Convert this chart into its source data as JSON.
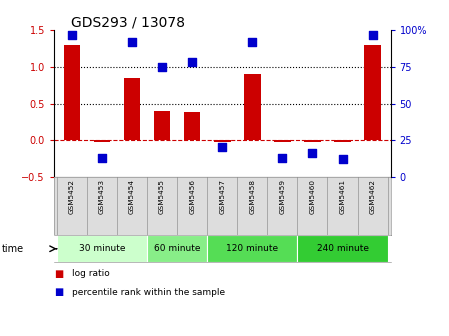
{
  "title": "GDS293 / 13078",
  "samples": [
    "GSM5452",
    "GSM5453",
    "GSM5454",
    "GSM5455",
    "GSM5456",
    "GSM5457",
    "GSM5458",
    "GSM5459",
    "GSM5460",
    "GSM5461",
    "GSM5462"
  ],
  "log_ratio": [
    1.3,
    -0.02,
    0.85,
    0.4,
    0.38,
    -0.02,
    0.9,
    -0.02,
    -0.02,
    -0.02,
    1.3
  ],
  "percentile": [
    97,
    13,
    92,
    75,
    78,
    20,
    92,
    13,
    16,
    12,
    97
  ],
  "bar_color": "#cc0000",
  "dot_color": "#0000cc",
  "ylim_left": [
    -0.5,
    1.5
  ],
  "ylim_right": [
    0,
    100
  ],
  "yticks_left": [
    -0.5,
    0.0,
    0.5,
    1.0,
    1.5
  ],
  "yticks_right": [
    0,
    25,
    50,
    75,
    100
  ],
  "ytick_labels_right": [
    "0",
    "25",
    "50",
    "75",
    "100%"
  ],
  "hlines": [
    0.5,
    1.0
  ],
  "hline_zero_color": "#cc0000",
  "hline_color": "black",
  "groups": [
    {
      "label": "30 minute",
      "start": 0,
      "end": 3,
      "color": "#ccffcc"
    },
    {
      "label": "60 minute",
      "start": 3,
      "end": 5,
      "color": "#88ee88"
    },
    {
      "label": "120 minute",
      "start": 5,
      "end": 8,
      "color": "#55dd55"
    },
    {
      "label": "240 minute",
      "start": 8,
      "end": 11,
      "color": "#33cc33"
    }
  ],
  "time_label": "time",
  "legend_items": [
    {
      "label": "log ratio",
      "color": "#cc0000"
    },
    {
      "label": "percentile rank within the sample",
      "color": "#0000cc"
    }
  ],
  "bg_color": "#ffffff",
  "tick_label_color_left": "#cc0000",
  "tick_label_color_right": "#0000cc",
  "bar_width": 0.55,
  "dot_size": 30,
  "spine_color": "#000000",
  "label_fontsize": 7,
  "tick_fontsize": 7,
  "title_fontsize": 10
}
